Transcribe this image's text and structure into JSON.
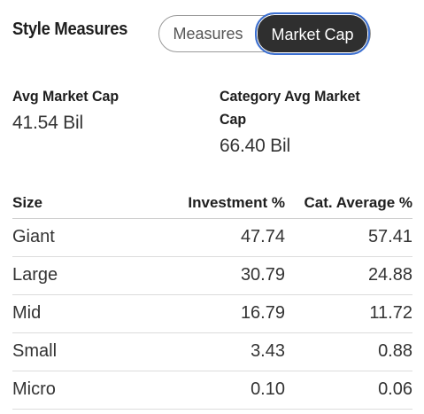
{
  "header": {
    "title": "Style Measures",
    "toggle": {
      "measures_label": "Measures",
      "market_cap_label": "Market Cap",
      "selected": "Market Cap"
    }
  },
  "kpis": {
    "avg_market_cap": {
      "label": "Avg Market Cap",
      "value": "41.54 Bil"
    },
    "category_avg_market_cap": {
      "label": "Category Avg Market Cap",
      "value": "66.40 Bil"
    }
  },
  "table": {
    "headers": {
      "size": "Size",
      "investment": "Investment %",
      "cat_average": "Cat. Average %"
    },
    "rows": [
      {
        "size": "Giant",
        "investment": "47.74",
        "cat_average": "57.41"
      },
      {
        "size": "Large",
        "investment": "30.79",
        "cat_average": "24.88"
      },
      {
        "size": "Mid",
        "investment": "16.79",
        "cat_average": "11.72"
      },
      {
        "size": "Small",
        "investment": "3.43",
        "cat_average": "0.88"
      },
      {
        "size": "Micro",
        "investment": "0.10",
        "cat_average": "0.06"
      }
    ]
  },
  "colors": {
    "selected_toggle_bg": "#2f2f2f",
    "focus_ring": "#3b6fd1",
    "text": "#1e1e1e"
  }
}
